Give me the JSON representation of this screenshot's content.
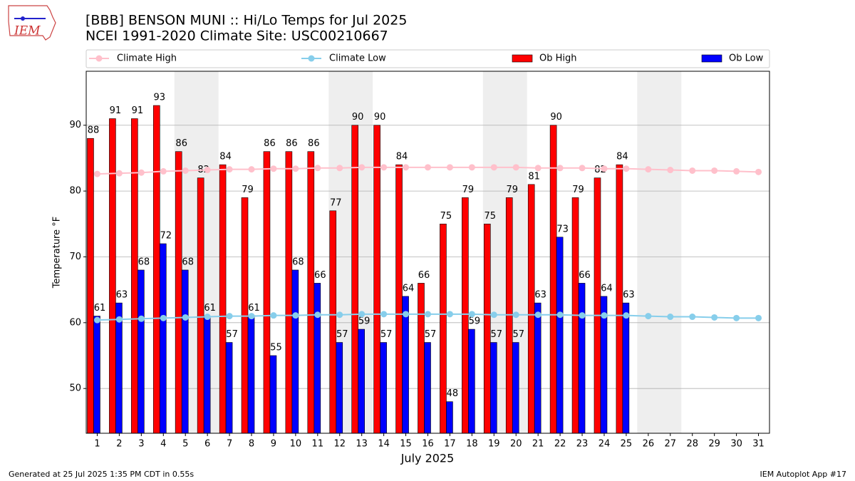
{
  "chart_data": {
    "type": "bar",
    "title": "[BBB] BENSON MUNI :: Hi/Lo Temps for Jul 2025",
    "subtitle": "NCEI 1991-2020 Climate Site: USC00210667",
    "y_label": "Temperature °F",
    "x_label": "July 2025",
    "logo_text": "IEM",
    "footer_left": "Generated at 25 Jul 2025 1:35 PM CDT in 0.55s",
    "footer_right": "IEM Autoplot App #17",
    "x": [
      1,
      2,
      3,
      4,
      5,
      6,
      7,
      8,
      9,
      10,
      11,
      12,
      13,
      14,
      15,
      16,
      17,
      18,
      19,
      20,
      21,
      22,
      23,
      24,
      25,
      26,
      27,
      28,
      29,
      30,
      31
    ],
    "xlim": [
      0.5,
      31.5
    ],
    "xticks": [
      1,
      2,
      3,
      4,
      5,
      6,
      7,
      8,
      9,
      10,
      11,
      12,
      13,
      14,
      15,
      16,
      17,
      18,
      19,
      20,
      21,
      22,
      23,
      24,
      25,
      26,
      27,
      28,
      29,
      30,
      31
    ],
    "ylim": [
      43.2,
      98.2
    ],
    "yticks": [
      50,
      60,
      70,
      80,
      90
    ],
    "grid": true,
    "shading": [
      [
        4.5,
        6.5
      ],
      [
        11.5,
        13.5
      ],
      [
        18.5,
        20.5
      ],
      [
        25.5,
        27.5
      ]
    ],
    "series": [
      {
        "name": "Climate High",
        "type": "line",
        "color": "#ffc0cb",
        "values": [
          82.6,
          82.7,
          82.8,
          83.0,
          83.1,
          83.2,
          83.3,
          83.3,
          83.4,
          83.4,
          83.5,
          83.5,
          83.6,
          83.6,
          83.6,
          83.6,
          83.6,
          83.6,
          83.6,
          83.6,
          83.5,
          83.5,
          83.5,
          83.4,
          83.4,
          83.3,
          83.2,
          83.1,
          83.1,
          83.0,
          82.9
        ]
      },
      {
        "name": "Climate Low",
        "type": "line",
        "color": "#87ceeb",
        "values": [
          60.4,
          60.5,
          60.6,
          60.7,
          60.8,
          60.9,
          61.0,
          61.0,
          61.1,
          61.1,
          61.2,
          61.2,
          61.3,
          61.3,
          61.3,
          61.3,
          61.3,
          61.3,
          61.2,
          61.2,
          61.2,
          61.2,
          61.1,
          61.1,
          61.1,
          61.0,
          60.9,
          60.9,
          60.8,
          60.7,
          60.7
        ]
      },
      {
        "name": "Ob High",
        "type": "bar",
        "color": "#ff0000",
        "values": [
          88,
          91,
          91,
          93,
          86,
          82,
          84,
          79,
          86,
          86,
          86,
          77,
          90,
          90,
          84,
          66,
          75,
          79,
          75,
          79,
          81,
          90,
          79,
          82,
          84,
          null,
          null,
          null,
          null,
          null,
          null
        ]
      },
      {
        "name": "Ob Low",
        "type": "bar",
        "color": "#0000ff",
        "values": [
          61,
          63,
          68,
          72,
          68,
          61,
          57,
          61,
          55,
          68,
          66,
          57,
          59,
          57,
          64,
          57,
          48,
          59,
          57,
          57,
          63,
          73,
          66,
          64,
          63,
          null,
          null,
          null,
          null,
          null,
          null
        ]
      }
    ]
  }
}
